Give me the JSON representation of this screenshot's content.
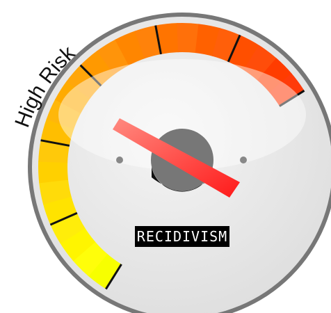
{
  "gauge": {
    "label": "High Risk",
    "display": "RECIDIVISM"
  }
}
